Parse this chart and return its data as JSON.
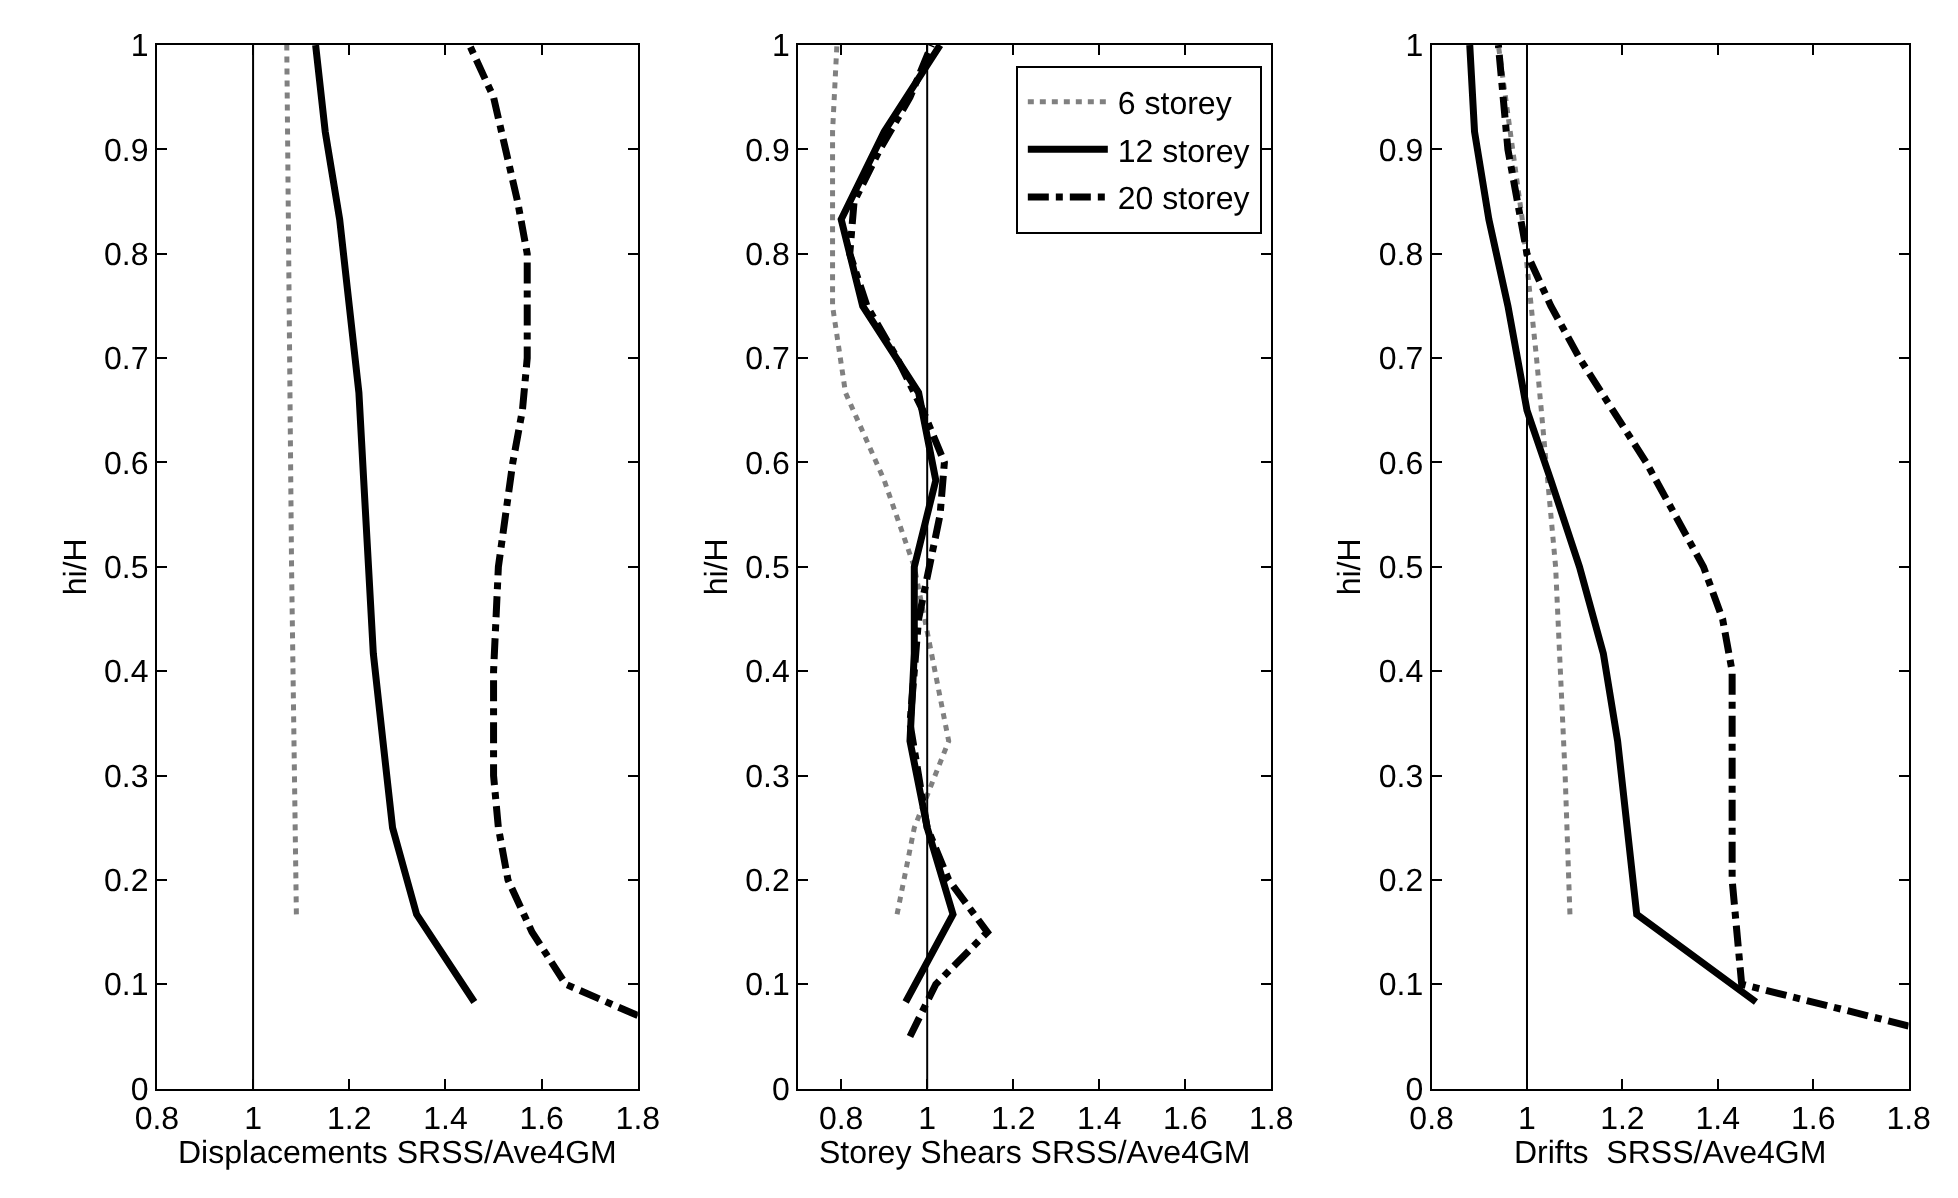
{
  "chart_data": [
    {
      "type": "line",
      "xlabel": "Displacements SRSS/Ave4GM",
      "ylabel": "hi/H",
      "xlim": [
        0.8,
        1.8
      ],
      "xticks": [
        0.8,
        1,
        1.2,
        1.4,
        1.6,
        1.8
      ],
      "ylim": [
        0,
        1
      ],
      "yticks": [
        0,
        0.1,
        0.2,
        0.3,
        0.4,
        0.5,
        0.6,
        0.7,
        0.8,
        0.9,
        1
      ],
      "ref_lines": [
        {
          "axis": "x",
          "value": 1,
          "color": "#000000"
        }
      ],
      "series": [
        {
          "color": "#808080",
          "line_style": "dotted",
          "x": [
            1.09,
            1.08,
            1.07
          ],
          "values": [
            0.167,
            0.5,
            1.0
          ]
        },
        {
          "color": "#000000",
          "line_style": "solid",
          "x": [
            1.46,
            1.34,
            1.29,
            1.27,
            1.25,
            1.24,
            1.23,
            1.22,
            1.2,
            1.18,
            1.15,
            1.13
          ],
          "values": [
            0.083,
            0.167,
            0.25,
            0.333,
            0.417,
            0.5,
            0.583,
            0.667,
            0.75,
            0.833,
            0.917,
            1.0
          ]
        },
        {
          "color": "#000000",
          "line_style": "dashdot",
          "x": [
            1.8,
            1.65,
            1.58,
            1.53,
            1.51,
            1.5,
            1.5,
            1.51,
            1.54,
            1.56,
            1.57,
            1.57,
            1.55,
            1.5,
            1.45
          ],
          "values": [
            0.07,
            0.1,
            0.15,
            0.2,
            0.25,
            0.3,
            0.4,
            0.5,
            0.6,
            0.65,
            0.7,
            0.8,
            0.85,
            0.95,
            1.0
          ]
        }
      ]
    },
    {
      "type": "line",
      "xlabel": "Storey Shears SRSS/Ave4GM",
      "ylabel": "hi/H",
      "xlim": [
        0.7,
        1.8
      ],
      "xticks": [
        0.8,
        1,
        1.2,
        1.4,
        1.6,
        1.8
      ],
      "ylim": [
        0,
        1
      ],
      "yticks": [
        0,
        0.1,
        0.2,
        0.3,
        0.4,
        0.5,
        0.6,
        0.7,
        0.8,
        0.9,
        1
      ],
      "legend": "top right",
      "ref_lines": [
        {
          "axis": "x",
          "value": 1,
          "color": "#000000"
        }
      ],
      "series": [
        {
          "name": "6 storey",
          "color": "#808080",
          "line_style": "dotted",
          "x": [
            0.93,
            0.97,
            1.05,
            1.01,
            0.97,
            0.9,
            0.81,
            0.78,
            0.78,
            0.78,
            0.79
          ],
          "values": [
            0.167,
            0.25,
            0.333,
            0.417,
            0.5,
            0.583,
            0.667,
            0.75,
            0.833,
            0.917,
            1.0
          ]
        },
        {
          "name": "12 storey",
          "color": "#000000",
          "line_style": "solid",
          "x": [
            0.95,
            1.06,
            1.0,
            0.96,
            0.97,
            0.97,
            1.02,
            0.98,
            0.85,
            0.8,
            0.9,
            1.03
          ],
          "values": [
            0.083,
            0.167,
            0.25,
            0.333,
            0.417,
            0.5,
            0.583,
            0.667,
            0.75,
            0.833,
            0.917,
            1.0
          ]
        },
        {
          "name": "20 storey",
          "color": "#000000",
          "line_style": "dashdot",
          "x": [
            0.96,
            1.02,
            1.14,
            1.05,
            1.0,
            0.98,
            0.96,
            0.97,
            0.98,
            1.03,
            1.04,
            0.99,
            0.93,
            0.86,
            0.82,
            0.83,
            0.89,
            0.96,
            1.01
          ],
          "values": [
            0.05,
            0.1,
            0.15,
            0.2,
            0.25,
            0.3,
            0.35,
            0.4,
            0.45,
            0.55,
            0.6,
            0.65,
            0.7,
            0.75,
            0.8,
            0.85,
            0.9,
            0.95,
            1.0
          ]
        }
      ]
    },
    {
      "type": "line",
      "xlabel": "Drifts  SRSS/Ave4GM",
      "ylabel": "hi/H",
      "xlim": [
        0.8,
        1.8
      ],
      "xticks": [
        0.8,
        1,
        1.2,
        1.4,
        1.6,
        1.8
      ],
      "ylim": [
        0,
        1
      ],
      "yticks": [
        0,
        0.1,
        0.2,
        0.3,
        0.4,
        0.5,
        0.6,
        0.7,
        0.8,
        0.9,
        1
      ],
      "ref_lines": [
        {
          "axis": "x",
          "value": 1,
          "color": "#000000"
        }
      ],
      "series": [
        {
          "color": "#808080",
          "line_style": "dotted",
          "x": [
            1.09,
            1.08,
            1.06,
            1.02,
            0.99,
            0.94
          ],
          "values": [
            0.167,
            0.3,
            0.5,
            0.7,
            0.833,
            1.0
          ]
        },
        {
          "color": "#000000",
          "line_style": "solid",
          "x": [
            1.48,
            1.23,
            1.21,
            1.19,
            1.16,
            1.11,
            1.05,
            1.0,
            0.96,
            0.92,
            0.89,
            0.88
          ],
          "values": [
            0.083,
            0.167,
            0.25,
            0.333,
            0.417,
            0.5,
            0.583,
            0.65,
            0.75,
            0.833,
            0.917,
            1.0
          ]
        },
        {
          "color": "#000000",
          "line_style": "dashdot",
          "x": [
            1.8,
            1.45,
            1.44,
            1.43,
            1.43,
            1.43,
            1.41,
            1.37,
            1.31,
            1.25,
            1.18,
            1.11,
            1.05,
            1.0,
            0.98,
            0.96,
            0.94
          ],
          "values": [
            0.06,
            0.1,
            0.15,
            0.2,
            0.3,
            0.4,
            0.45,
            0.5,
            0.55,
            0.6,
            0.65,
            0.7,
            0.75,
            0.8,
            0.85,
            0.9,
            1.0
          ]
        }
      ]
    }
  ]
}
